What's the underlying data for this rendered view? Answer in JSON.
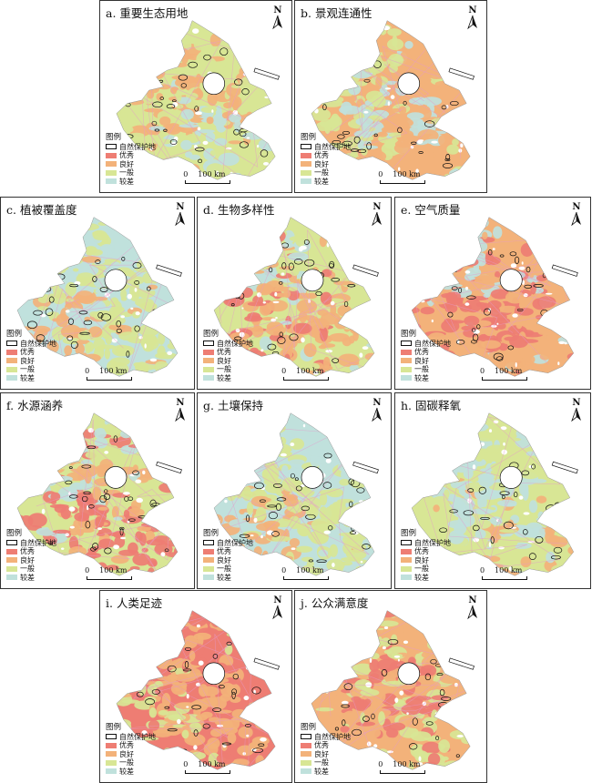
{
  "colors": {
    "excellent": "#ee7d73",
    "good": "#f3b27a",
    "moderate": "#d8e695",
    "poor": "#c0e1dc",
    "reserve_outline": "#111111",
    "line": "#e69acb"
  },
  "legend": {
    "title": "图例",
    "items": [
      {
        "label": "自然保护地",
        "type": "outline"
      },
      {
        "label": "优秀",
        "color": "#ee7d73"
      },
      {
        "label": "良好",
        "color": "#f3b27a"
      },
      {
        "label": "一般",
        "color": "#d8e695"
      },
      {
        "label": "较差",
        "color": "#c0e1dc"
      }
    ]
  },
  "scale": {
    "zero": "0",
    "distance": "100 km"
  },
  "north": {
    "label": "N"
  },
  "panels": [
    {
      "id": "a",
      "title": "a. 重要生态用地",
      "palette": [
        "#f3b27a",
        "#d8e695",
        "#f3b27a",
        "#d8e695",
        "#c0e1dc"
      ]
    },
    {
      "id": "b",
      "title": "b. 景观连通性",
      "palette": [
        "#d8e695",
        "#f3b27a",
        "#c0e1dc",
        "#d8e695",
        "#f3b27a"
      ]
    },
    {
      "id": "c",
      "title": "c. 植被覆盖度",
      "palette": [
        "#d8e695",
        "#c0e1dc",
        "#d8e695",
        "#f3b27a",
        "#d8e695"
      ]
    },
    {
      "id": "d",
      "title": "d. 生物多样性",
      "palette": [
        "#c0e1dc",
        "#d8e695",
        "#f3b27a",
        "#ee7d73",
        "#f3b27a"
      ]
    },
    {
      "id": "e",
      "title": "e. 空气质量",
      "palette": [
        "#c0e1dc",
        "#f3b27a",
        "#ee7d73",
        "#ee7d73",
        "#f3b27a"
      ]
    },
    {
      "id": "f",
      "title": "f. 水源涵养",
      "palette": [
        "#c0e1dc",
        "#d8e695",
        "#f3b27a",
        "#ee7d73",
        "#ee7d73"
      ]
    },
    {
      "id": "g",
      "title": "g. 土壤保持",
      "palette": [
        "#d8e695",
        "#c0e1dc",
        "#d8e695",
        "#f3b27a",
        "#d8e695"
      ]
    },
    {
      "id": "h",
      "title": "h. 固碳释氧",
      "palette": [
        "#c0e1dc",
        "#d8e695",
        "#c0e1dc",
        "#d8e695",
        "#f3b27a"
      ]
    },
    {
      "id": "i",
      "title": "i. 人类足迹",
      "palette": [
        "#f3b27a",
        "#ee7d73",
        "#f3b27a",
        "#d8e695",
        "#f3b27a"
      ]
    },
    {
      "id": "j",
      "title": "j. 公众满意度",
      "palette": [
        "#d8e695",
        "#f3b27a",
        "#ee7d73",
        "#f3b27a",
        "#d8e695"
      ]
    }
  ]
}
